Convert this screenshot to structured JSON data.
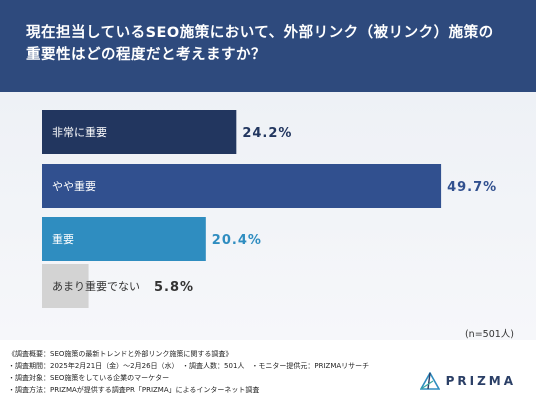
{
  "header": {
    "title_line1": "現在担当しているSEO施策において、外部リンク（被リンク）施策の",
    "title_line2": "重要性はどの程度だと考えますか？"
  },
  "chart_data": {
    "type": "bar",
    "orientation": "horizontal",
    "categories": [
      "非常に重要",
      "やや重要",
      "重要",
      "あまり重要でない"
    ],
    "values": [
      24.2,
      49.7,
      20.4,
      5.8
    ],
    "value_labels": [
      "24.2%",
      "49.7%",
      "20.4%",
      "5.8%"
    ],
    "colors": [
      "#22365f",
      "#31508f",
      "#2f8dc0",
      "#d3d3d3"
    ],
    "label_colors": [
      "#ffffff",
      "#ffffff",
      "#ffffff",
      "#333333"
    ],
    "value_colors": [
      "#22365f",
      "#31508f",
      "#2f8dc0",
      "#333333"
    ]
  },
  "note": "(n=501人)",
  "footer": {
    "line1": "《調査概要：SEO施策の最新トレンドと外部リンク施策に関する調査》",
    "line2": "・調査期間：2025年2月21日（金）〜2月26日（水）　・調査人数：501人　・モニター提供元：PRIZMAリサーチ",
    "line3": "・調査対象：SEO施策をしている企業のマーケター",
    "line4": "・調査方法：PRIZMAが提供する調査PR「PRIZMA」によるインターネット調査"
  },
  "brand": {
    "name": "PRIZMA",
    "logo": "prizma-triangle-logo"
  }
}
